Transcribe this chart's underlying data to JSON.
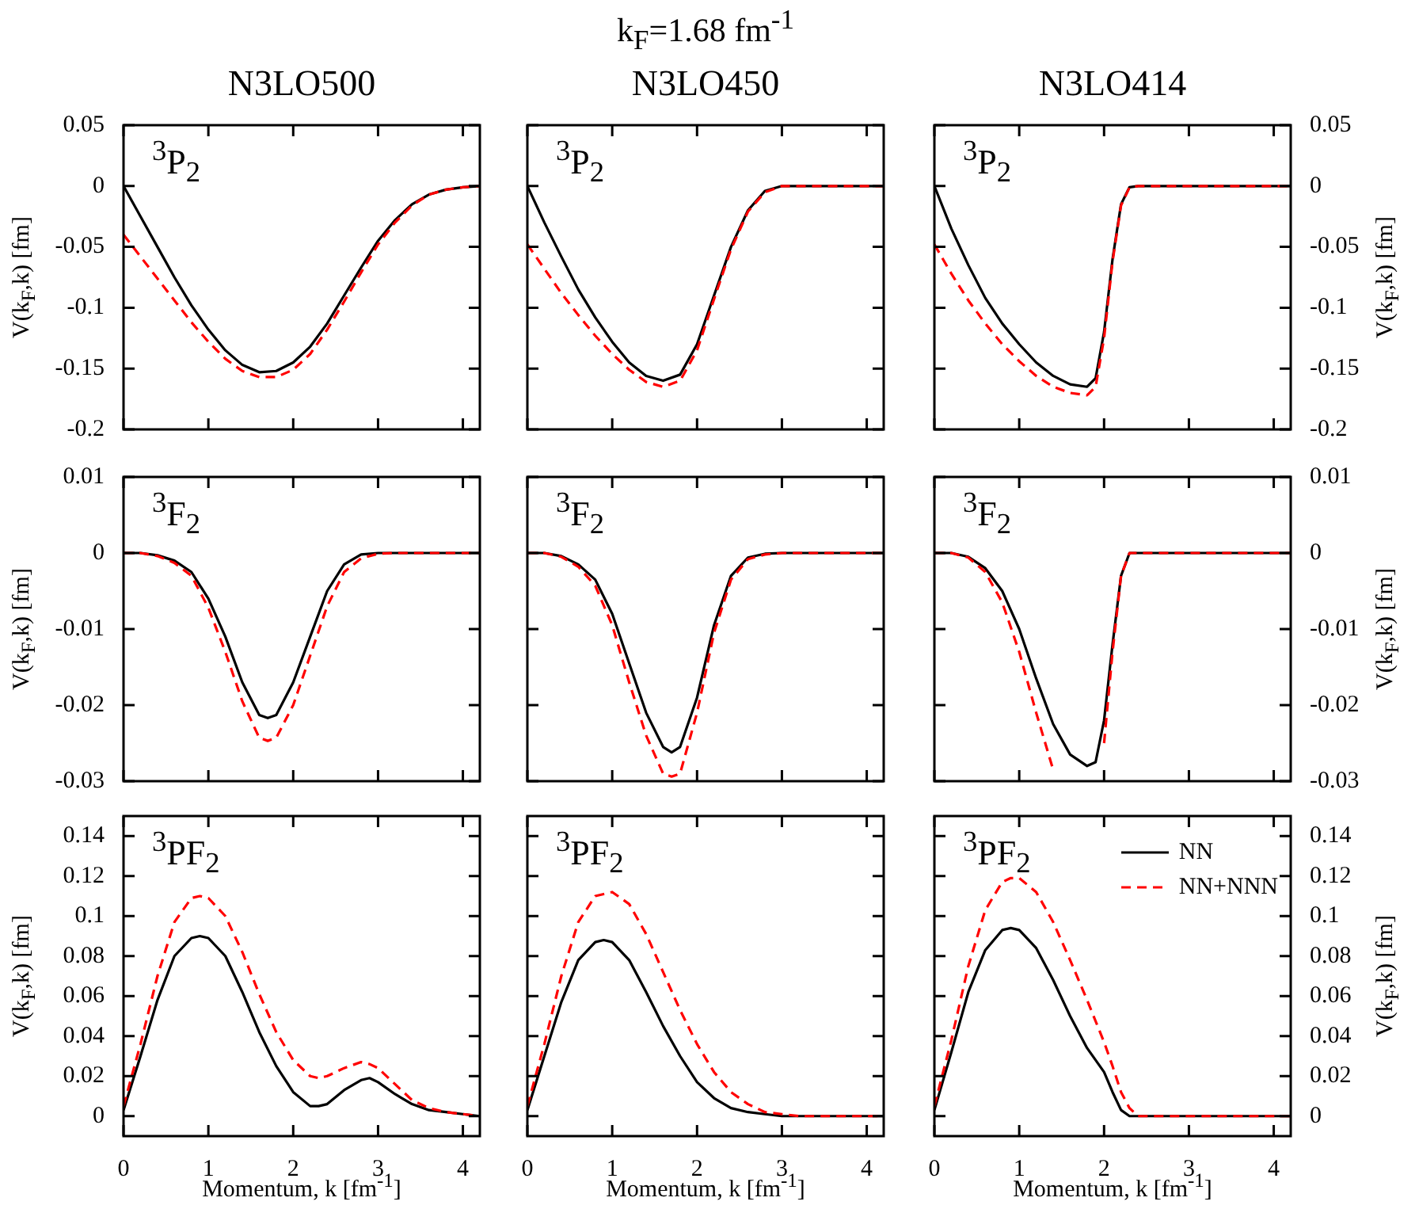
{
  "chart_data": [
    {
      "type": "line",
      "title": "N3LO500",
      "ylabel": "V(k$_{F}$,k) [fm]",
      "annotations": [
        "$^{3}$P$_{2}$"
      ],
      "x": [
        0,
        0.2,
        0.4,
        0.6,
        0.8,
        1,
        1.2,
        1.4,
        1.6,
        1.8,
        2,
        2.2,
        2.4,
        2.6,
        2.8,
        3,
        3.2,
        3.4,
        3.6,
        3.8,
        4,
        4.2
      ],
      "xlim": [
        0,
        4.2
      ],
      "xticks": [
        0,
        1,
        2,
        3,
        4
      ],
      "ylim": [
        -0.2,
        0.05
      ],
      "yticks": [
        -0.2,
        -0.15,
        -0.1,
        -0.05,
        0,
        0.05
      ],
      "tick_labels": "y",
      "series": [
        {
          "color": "#000000",
          "values": [
            0,
            -0.025,
            -0.05,
            -0.075,
            -0.098,
            -0.118,
            -0.135,
            -0.147,
            -0.153,
            -0.152,
            -0.145,
            -0.132,
            -0.113,
            -0.09,
            -0.067,
            -0.045,
            -0.028,
            -0.015,
            -0.007,
            -0.003,
            -0.001,
            0
          ]
        },
        {
          "color": "#ff0000",
          "line_style": "dashed",
          "values": [
            -0.04,
            -0.058,
            -0.076,
            -0.094,
            -0.112,
            -0.128,
            -0.142,
            -0.152,
            -0.157,
            -0.157,
            -0.151,
            -0.138,
            -0.118,
            -0.095,
            -0.071,
            -0.048,
            -0.03,
            -0.016,
            -0.007,
            -0.003,
            -0.001,
            0
          ]
        }
      ]
    },
    {
      "type": "line",
      "title": "k$_{F}$=1.68 fm$^{-1}$",
      "subtitle": "N3LO450",
      "annotations": [
        "$^{3}$P$_{2}$"
      ],
      "x": [
        0,
        0.2,
        0.4,
        0.6,
        0.8,
        1,
        1.2,
        1.4,
        1.6,
        1.8,
        2,
        2.2,
        2.4,
        2.6,
        2.8,
        3,
        3.2,
        3.4,
        3.6,
        3.8,
        4,
        4.2
      ],
      "xlim": [
        0,
        4.2
      ],
      "xticks": [
        0,
        1,
        2,
        3,
        4
      ],
      "ylim": [
        -0.2,
        0.05
      ],
      "yticks": [
        -0.2,
        -0.15,
        -0.1,
        -0.05,
        0,
        0.05
      ],
      "tick_labels": false,
      "series": [
        {
          "color": "#000000",
          "values": [
            0,
            -0.03,
            -0.058,
            -0.085,
            -0.108,
            -0.128,
            -0.145,
            -0.156,
            -0.16,
            -0.155,
            -0.13,
            -0.09,
            -0.05,
            -0.02,
            -0.004,
            0,
            0,
            0,
            0,
            0,
            0,
            0
          ]
        },
        {
          "color": "#ff0000",
          "line_style": "dashed",
          "values": [
            -0.048,
            -0.068,
            -0.088,
            -0.106,
            -0.123,
            -0.138,
            -0.151,
            -0.161,
            -0.165,
            -0.16,
            -0.135,
            -0.093,
            -0.052,
            -0.021,
            -0.005,
            0,
            0,
            0,
            0,
            0,
            0,
            0
          ]
        }
      ]
    },
    {
      "type": "line",
      "title": "N3LO414",
      "ylabel": "V(k$_{F}$,k) [fm]",
      "annotations": [
        "$^{3}$P$_{2}$"
      ],
      "x": [
        0,
        0.2,
        0.4,
        0.6,
        0.8,
        1,
        1.2,
        1.4,
        1.6,
        1.8,
        1.9,
        2,
        2.1,
        2.2,
        2.3,
        2.4,
        2.6,
        2.8,
        3,
        3.2,
        3.4,
        3.6,
        3.8,
        4,
        4.2
      ],
      "xlim": [
        0,
        4.2
      ],
      "xticks": [
        0,
        1,
        2,
        3,
        4
      ],
      "ylim": [
        -0.2,
        0.05
      ],
      "yticks": [
        -0.2,
        -0.15,
        -0.1,
        -0.05,
        0,
        0.05
      ],
      "tick_labels": "y",
      "series": [
        {
          "color": "#000000",
          "values": [
            0,
            -0.035,
            -0.065,
            -0.092,
            -0.113,
            -0.13,
            -0.145,
            -0.156,
            -0.163,
            -0.165,
            -0.158,
            -0.12,
            -0.06,
            -0.015,
            -0.001,
            0,
            0,
            0,
            0,
            0,
            0,
            0,
            0,
            0,
            0
          ]
        },
        {
          "color": "#ff0000",
          "line_style": "dashed",
          "values": [
            -0.048,
            -0.072,
            -0.094,
            -0.113,
            -0.13,
            -0.144,
            -0.156,
            -0.165,
            -0.17,
            -0.172,
            -0.165,
            -0.125,
            -0.062,
            -0.016,
            -0.001,
            0,
            0,
            0,
            0,
            0,
            0,
            0,
            0,
            0,
            0
          ]
        }
      ]
    },
    {
      "type": "line",
      "ylabel": "V(k$_{F}$,k) [fm]",
      "annotations": [
        "$^{3}$F$_{2}$"
      ],
      "x": [
        0,
        0.2,
        0.4,
        0.6,
        0.8,
        1,
        1.2,
        1.4,
        1.6,
        1.7,
        1.8,
        2,
        2.2,
        2.4,
        2.6,
        2.8,
        3,
        3.2,
        3.4,
        3.6,
        3.8,
        4,
        4.2
      ],
      "xlim": [
        0,
        4.2
      ],
      "xticks": [
        0,
        1,
        2,
        3,
        4
      ],
      "ylim": [
        -0.03,
        0.01
      ],
      "yticks": [
        -0.03,
        -0.02,
        -0.01,
        0,
        0.01
      ],
      "tick_labels": "y",
      "series": [
        {
          "color": "#000000",
          "values": [
            0,
            0,
            -0.0003,
            -0.001,
            -0.0025,
            -0.006,
            -0.011,
            -0.017,
            -0.0213,
            -0.0217,
            -0.0213,
            -0.017,
            -0.011,
            -0.005,
            -0.0015,
            -0.0002,
            0,
            0,
            0,
            0,
            0,
            0,
            0
          ]
        },
        {
          "color": "#ff0000",
          "line_style": "dashed",
          "values": [
            0,
            0,
            -0.0004,
            -0.0013,
            -0.003,
            -0.0072,
            -0.013,
            -0.0195,
            -0.0243,
            -0.0247,
            -0.0243,
            -0.02,
            -0.0135,
            -0.007,
            -0.0025,
            -0.0007,
            -0.0001,
            0,
            0,
            0,
            0,
            0,
            0
          ]
        }
      ]
    },
    {
      "type": "line",
      "annotations": [
        "$^{3}$F$_{2}$"
      ],
      "x": [
        0,
        0.2,
        0.4,
        0.6,
        0.8,
        1,
        1.2,
        1.4,
        1.6,
        1.7,
        1.8,
        2,
        2.2,
        2.4,
        2.6,
        2.8,
        3,
        3.2,
        3.4,
        3.6,
        3.8,
        4,
        4.2
      ],
      "xlim": [
        0,
        4.2
      ],
      "xticks": [
        0,
        1,
        2,
        3,
        4
      ],
      "ylim": [
        -0.03,
        0.01
      ],
      "yticks": [
        -0.03,
        -0.02,
        -0.01,
        0,
        0.01
      ],
      "tick_labels": false,
      "series": [
        {
          "color": "#000000",
          "values": [
            0,
            0,
            -0.0004,
            -0.0015,
            -0.0035,
            -0.008,
            -0.0145,
            -0.021,
            -0.0255,
            -0.0262,
            -0.0255,
            -0.019,
            -0.0095,
            -0.003,
            -0.0006,
            -0.0001,
            0,
            0,
            0,
            0,
            0,
            0,
            0
          ]
        },
        {
          "color": "#ff0000",
          "line_style": "dashed",
          "values": [
            0,
            0,
            -0.0005,
            -0.0018,
            -0.0043,
            -0.0095,
            -0.017,
            -0.024,
            -0.029,
            -0.0294,
            -0.029,
            -0.021,
            -0.0105,
            -0.0035,
            -0.0008,
            -0.0002,
            0,
            0,
            0,
            0,
            0,
            0,
            0
          ]
        }
      ]
    },
    {
      "type": "line",
      "ylabel": "V(k$_{F}$,k) [fm]",
      "annotations": [
        "$^{3}$F$_{2}$"
      ],
      "x": [
        0,
        0.2,
        0.4,
        0.6,
        0.8,
        1,
        1.2,
        1.4,
        1.6,
        1.8,
        1.9,
        2,
        2.1,
        2.2,
        2.3,
        2.4,
        2.6,
        2.8,
        3,
        3.2,
        3.4,
        3.6,
        3.8,
        4,
        4.2
      ],
      "xlim": [
        0,
        4.2
      ],
      "xticks": [
        0,
        1,
        2,
        3,
        4
      ],
      "ylim": [
        -0.03,
        0.01
      ],
      "yticks": [
        -0.03,
        -0.02,
        -0.01,
        0,
        0.01
      ],
      "tick_labels": "y",
      "series": [
        {
          "color": "#000000",
          "values": [
            0,
            0,
            -0.0005,
            -0.002,
            -0.005,
            -0.01,
            -0.0165,
            -0.0225,
            -0.0265,
            -0.028,
            -0.0275,
            -0.022,
            -0.012,
            -0.003,
            0,
            0,
            0,
            0,
            0,
            0,
            0,
            0,
            0,
            0,
            0
          ]
        },
        {
          "color": "#ff0000",
          "line_style": "dashed",
          "values": [
            0,
            0,
            -0.0006,
            -0.0025,
            -0.0065,
            -0.013,
            -0.021,
            -0.0285,
            null,
            null,
            null,
            -0.025,
            -0.013,
            -0.003,
            0,
            0,
            0,
            0,
            0,
            0,
            0,
            0,
            0,
            0,
            0
          ]
        }
      ]
    },
    {
      "type": "line",
      "xlabel": "Momentum, k [fm$^{-1}$]",
      "ylabel": "V(k$_{F}$,k) [fm]",
      "annotations": [
        "$^{3}$PF$_{2}$"
      ],
      "x": [
        0,
        0.2,
        0.4,
        0.6,
        0.8,
        0.9,
        1,
        1.2,
        1.4,
        1.6,
        1.8,
        2,
        2.2,
        2.3,
        2.4,
        2.6,
        2.8,
        2.9,
        3,
        3.2,
        3.4,
        3.6,
        3.8,
        4,
        4.2
      ],
      "xlim": [
        0,
        4.2
      ],
      "xticks": [
        0,
        1,
        2,
        3,
        4
      ],
      "ylim": [
        -0.01,
        0.15
      ],
      "yticks": [
        0,
        0.02,
        0.04,
        0.06,
        0.08,
        0.1,
        0.12,
        0.14
      ],
      "tick_labels": "xy",
      "series": [
        {
          "color": "#000000",
          "values": [
            0.003,
            0.03,
            0.058,
            0.08,
            0.089,
            0.09,
            0.089,
            0.08,
            0.062,
            0.042,
            0.025,
            0.012,
            0.005,
            0.005,
            0.006,
            0.013,
            0.018,
            0.019,
            0.017,
            0.011,
            0.006,
            0.003,
            0.002,
            0.001,
            0
          ]
        },
        {
          "color": "#ff0000",
          "line_style": "dashed",
          "values": [
            0.005,
            0.036,
            0.07,
            0.097,
            0.109,
            0.11,
            0.109,
            0.1,
            0.082,
            0.061,
            0.042,
            0.028,
            0.02,
            0.019,
            0.02,
            0.024,
            0.027,
            0.026,
            0.024,
            0.016,
            0.008,
            0.004,
            0.002,
            0.001,
            0
          ]
        }
      ]
    },
    {
      "type": "line",
      "xlabel": "Momentum, k [fm$^{-1}$]",
      "annotations": [
        "$^{3}$PF$_{2}$"
      ],
      "x": [
        0,
        0.2,
        0.4,
        0.6,
        0.8,
        0.9,
        1,
        1.2,
        1.4,
        1.6,
        1.8,
        2,
        2.2,
        2.4,
        2.6,
        2.8,
        3,
        3.2,
        3.4,
        3.6,
        3.8,
        4,
        4.2
      ],
      "xlim": [
        0,
        4.2
      ],
      "xticks": [
        0,
        1,
        2,
        3,
        4
      ],
      "ylim": [
        -0.01,
        0.15
      ],
      "yticks": [
        0,
        0.02,
        0.04,
        0.06,
        0.08,
        0.1,
        0.12,
        0.14
      ],
      "tick_labels": "x",
      "series": [
        {
          "color": "#000000",
          "values": [
            0.003,
            0.03,
            0.057,
            0.078,
            0.087,
            0.088,
            0.087,
            0.078,
            0.062,
            0.045,
            0.03,
            0.017,
            0.009,
            0.004,
            0.002,
            0.001,
            0,
            0,
            0,
            0,
            0,
            0,
            0
          ]
        },
        {
          "color": "#ff0000",
          "line_style": "dashed",
          "values": [
            0.005,
            0.036,
            0.07,
            0.097,
            0.11,
            0.111,
            0.112,
            0.106,
            0.091,
            0.072,
            0.053,
            0.036,
            0.022,
            0.012,
            0.006,
            0.002,
            0.001,
            0,
            0,
            0,
            0,
            0,
            0
          ]
        }
      ]
    },
    {
      "type": "line",
      "xlabel": "Momentum, k [fm$^{-1}$]",
      "ylabel": "V(k$_{F}$,k) [fm]",
      "annotations": [
        "$^{3}$PF$_{2}$"
      ],
      "legend": "top right",
      "x": [
        0,
        0.2,
        0.4,
        0.6,
        0.8,
        0.9,
        1,
        1.2,
        1.4,
        1.6,
        1.8,
        2,
        2.1,
        2.2,
        2.3,
        2.4,
        2.6,
        2.8,
        3,
        3.2,
        3.4,
        3.6,
        3.8,
        4,
        4.2
      ],
      "xlim": [
        0,
        4.2
      ],
      "xticks": [
        0,
        1,
        2,
        3,
        4
      ],
      "ylim": [
        -0.01,
        0.15
      ],
      "yticks": [
        0,
        0.02,
        0.04,
        0.06,
        0.08,
        0.1,
        0.12,
        0.14
      ],
      "series": [
        {
          "name": "NN",
          "color": "#000000",
          "values": [
            0.003,
            0.032,
            0.062,
            0.083,
            0.093,
            0.094,
            0.093,
            0.084,
            0.068,
            0.05,
            0.034,
            0.022,
            0.012,
            0.003,
            0,
            0,
            0,
            0,
            0,
            0,
            0,
            0,
            0,
            0,
            0
          ]
        },
        {
          "name": "NN+NNN",
          "color": "#ff0000",
          "line_style": "dashed",
          "values": [
            0.005,
            0.038,
            0.075,
            0.103,
            0.117,
            0.119,
            0.119,
            0.112,
            0.097,
            0.078,
            0.058,
            0.037,
            0.025,
            0.012,
            0.004,
            0,
            0,
            0,
            0,
            0,
            0,
            0,
            0,
            0,
            0
          ]
        }
      ]
    }
  ]
}
